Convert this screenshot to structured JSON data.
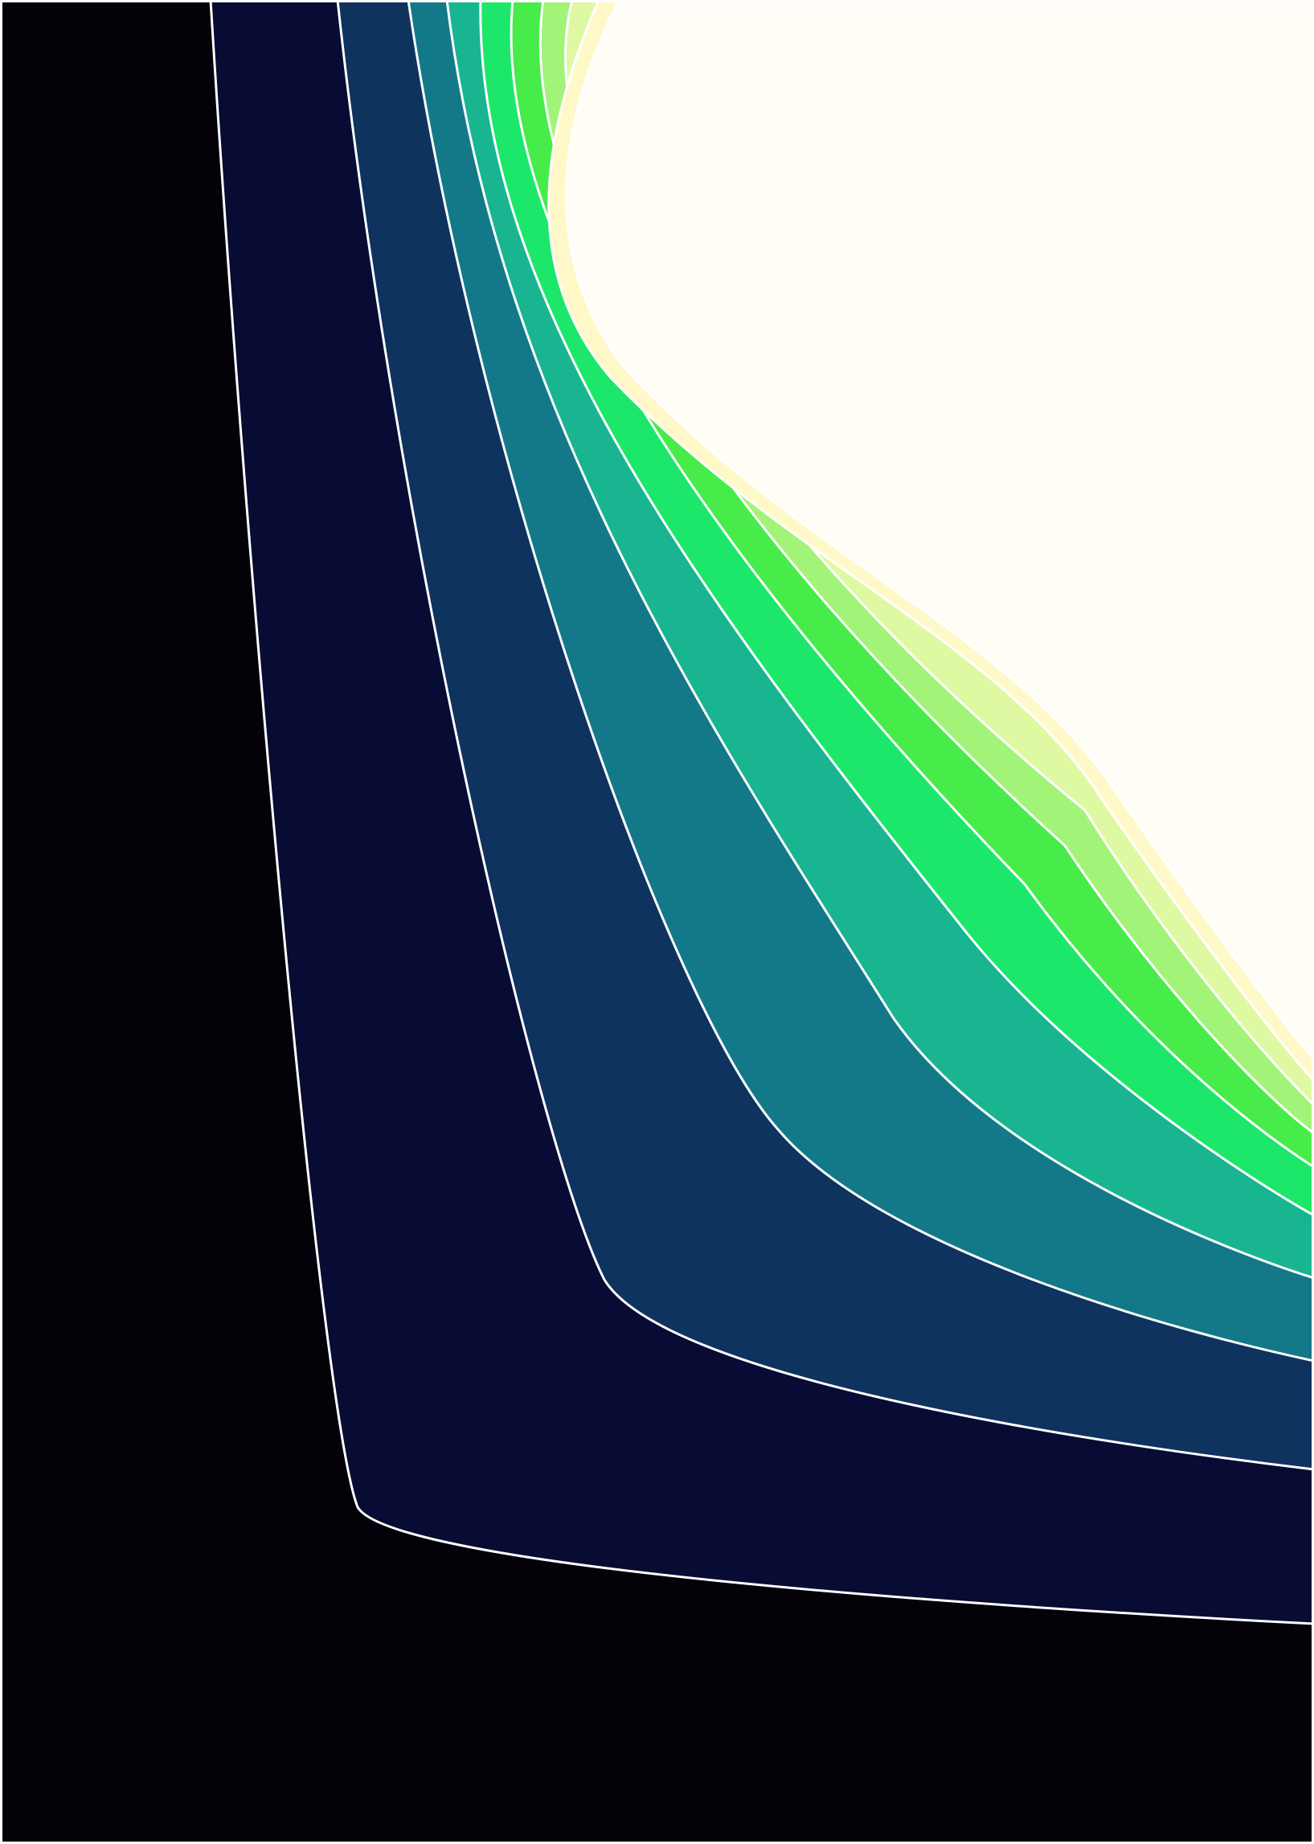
{
  "artwork": {
    "background_color": "#020208",
    "outline_color": "#ffffff",
    "palette": [
      "#080b33",
      "#0e335e",
      "#137988",
      "#19b591",
      "#1de76a",
      "#48ec4a",
      "#a2f479",
      "#dff9a3",
      "#fff8c8",
      "#fffdf6"
    ]
  }
}
